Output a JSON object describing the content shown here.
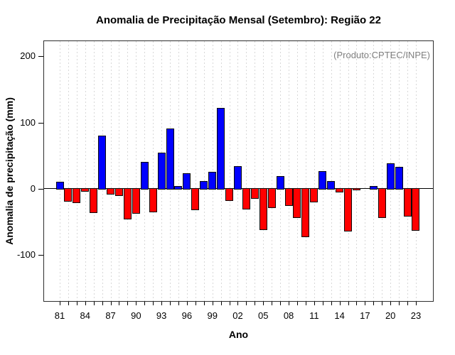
{
  "chart": {
    "title": "Anomalia de Precipitação Mensal (Setembro): Região 22",
    "annotation": "(Produto:CPTEC/INPE)",
    "ylabel": "Anomalia de precipitação (mm)",
    "xlabel": "Ano"
  },
  "chart_data": {
    "type": "bar",
    "title": "Anomalia de Precipitação Mensal (Setembro): Região 22",
    "annotation": "(Produto:CPTEC/INPE)",
    "xlabel": "Ano",
    "ylabel": "Anomalia de precipitação (mm)",
    "years": [
      1981,
      1982,
      1983,
      1984,
      1985,
      1986,
      1987,
      1988,
      1989,
      1990,
      1991,
      1992,
      1993,
      1994,
      1995,
      1996,
      1997,
      1998,
      1999,
      2000,
      2001,
      2002,
      2003,
      2004,
      2005,
      2006,
      2007,
      2008,
      2009,
      2010,
      2011,
      2012,
      2013,
      2014,
      2015,
      2016,
      2017,
      2018,
      2019,
      2020,
      2021,
      2022,
      2023
    ],
    "values": [
      10,
      -18,
      -20,
      -3,
      -35,
      79,
      -7,
      -10,
      -45,
      -36,
      40,
      -34,
      54,
      90,
      3,
      22,
      -31,
      11,
      25,
      121,
      -17,
      33,
      -30,
      -14,
      -61,
      -28,
      18,
      -25,
      -43,
      -72,
      -19,
      26,
      11,
      -4,
      -63,
      -1,
      0,
      3,
      -43,
      38,
      32,
      -41,
      -62
    ],
    "x_tick_labels": [
      "81",
      "84",
      "87",
      "90",
      "93",
      "96",
      "99",
      "02",
      "05",
      "08",
      "11",
      "14",
      "17",
      "20",
      "23"
    ],
    "x_tick_step": 3,
    "yticks": [
      200,
      100,
      0,
      -100
    ],
    "ylim": [
      -170,
      225
    ],
    "grid": "vertical-dotted",
    "legend": "none",
    "colors": {
      "positive": "#0000ff",
      "negative": "#ff0000",
      "bar_border": "#0a0a0a",
      "grid": "#d8d8d8",
      "zero_line": "#000000",
      "axis_frame": "#2e2e2e",
      "annotation_text": "#808080",
      "text": "#000000"
    }
  }
}
